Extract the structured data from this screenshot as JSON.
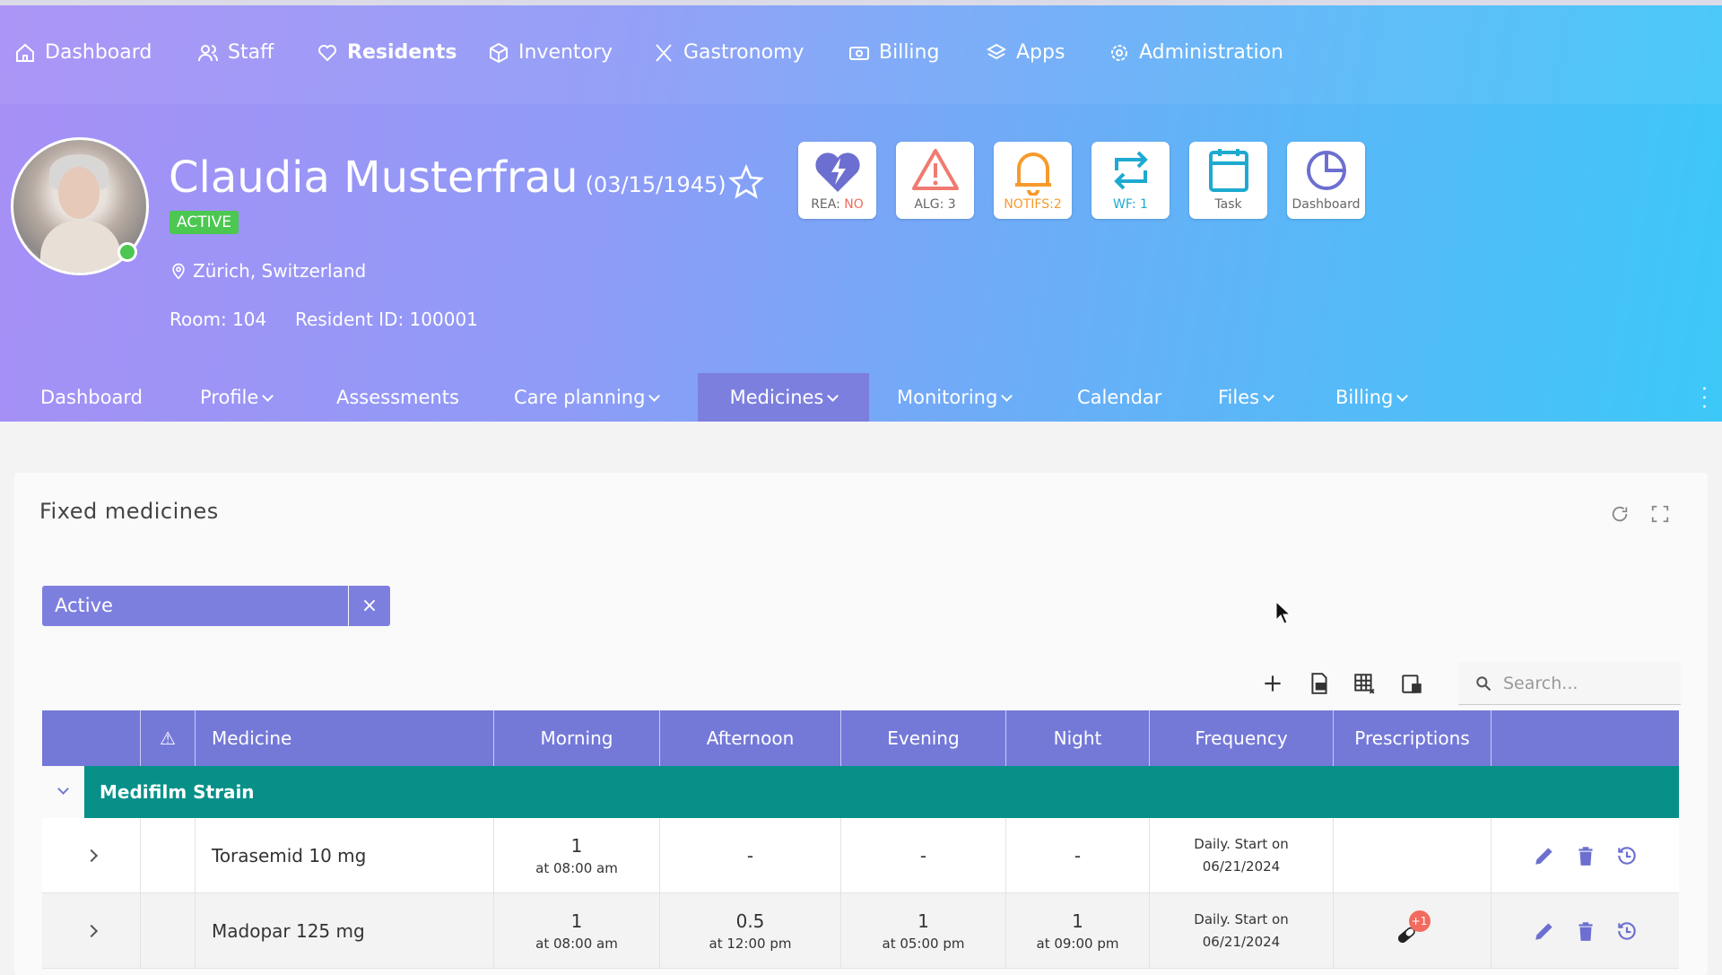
{
  "nav": [
    {
      "label": "Dashboard",
      "icon": "home-icon"
    },
    {
      "label": "Staff",
      "icon": "users-icon"
    },
    {
      "label": "Residents",
      "icon": "heart-hand-icon"
    },
    {
      "label": "Inventory",
      "icon": "box-icon"
    },
    {
      "label": "Gastronomy",
      "icon": "utensils-icon"
    },
    {
      "label": "Billing",
      "icon": "money-icon"
    },
    {
      "label": "Apps",
      "icon": "layers-icon"
    },
    {
      "label": "Administration",
      "icon": "gear-icon"
    }
  ],
  "resident": {
    "name": "Claudia Musterfrau",
    "dob": "(03/15/1945)",
    "status": "ACTIVE",
    "location": "Zürich, Switzerland",
    "room": "Room: 104",
    "resident_id": "Resident ID: 100001"
  },
  "quick": [
    {
      "label": "REA:",
      "value": "NO",
      "icon": "heart-bolt-icon",
      "color": "#6c6fd0",
      "value_color": "#f06a5a"
    },
    {
      "label": "ALG: 3",
      "icon": "warning-icon",
      "color": "#f07a70"
    },
    {
      "label": "NOTIFS:2",
      "icon": "bell-icon",
      "color": "#f79a2c"
    },
    {
      "label": "WF: 1",
      "icon": "repeat-icon",
      "color": "#1eaad0"
    },
    {
      "label": "Task",
      "icon": "calendar-icon",
      "color": "#1eaad0"
    },
    {
      "label": "Dashboard",
      "icon": "pie-chart-icon",
      "color": "#6c6fd0"
    }
  ],
  "subnav": [
    {
      "label": "Dashboard",
      "dropdown": false
    },
    {
      "label": "Profile",
      "dropdown": true
    },
    {
      "label": "Assessments",
      "dropdown": false
    },
    {
      "label": "Care planning",
      "dropdown": true
    },
    {
      "label": "Medicines",
      "dropdown": true,
      "active": true
    },
    {
      "label": "Monitoring",
      "dropdown": true
    },
    {
      "label": "Calendar",
      "dropdown": false
    },
    {
      "label": "Files",
      "dropdown": true
    },
    {
      "label": "Billing",
      "dropdown": true
    }
  ],
  "card": {
    "title": "Fixed medicines",
    "filter": "Active",
    "filter_clear": "×",
    "search_placeholder": "Search..."
  },
  "table": {
    "headers": [
      "",
      "⚠",
      "Medicine",
      "Morning",
      "Afternoon",
      "Evening",
      "Night",
      "Frequency",
      "Prescriptions",
      ""
    ],
    "group": "Medifilm Strain",
    "rows": [
      {
        "medicine": "Torasemid 10 mg",
        "morning": "1",
        "morning_time": "at 08:00 am",
        "afternoon": "-",
        "afternoon_time": "",
        "evening": "-",
        "evening_time": "",
        "night": "-",
        "night_time": "",
        "freq1": "Daily. Start on",
        "freq2": "06/21/2024",
        "prescription_badge": ""
      },
      {
        "medicine": "Madopar 125 mg",
        "morning": "1",
        "morning_time": "at 08:00 am",
        "afternoon": "0.5",
        "afternoon_time": "at 12:00 pm",
        "evening": "1",
        "evening_time": "at 05:00 pm",
        "night": "1",
        "night_time": "at 09:00 pm",
        "freq1": "Daily. Start on",
        "freq2": "06/21/2024",
        "prescription_badge": "+1"
      }
    ]
  },
  "colors": {
    "accent": "#7479d8",
    "group": "#079088",
    "active": "#4cc751"
  }
}
